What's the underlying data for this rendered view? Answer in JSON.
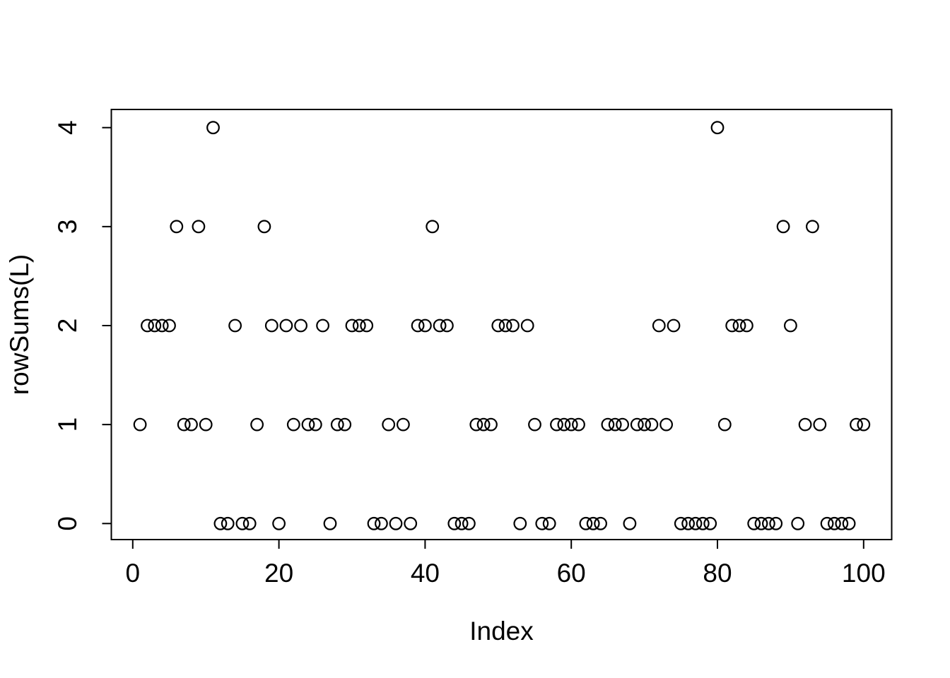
{
  "chart_data": {
    "type": "scatter",
    "title": "",
    "xlabel": "Index",
    "ylabel": "rowSums(L)",
    "point_style": "open-circle",
    "point_color": "#000000",
    "background_color": "#ffffff",
    "grid": false,
    "legend": null,
    "x_ticks": [
      0,
      20,
      40,
      60,
      80,
      100
    ],
    "y_ticks": [
      0,
      1,
      2,
      3,
      4
    ],
    "xlim": [
      -3,
      104
    ],
    "ylim": [
      -0.16,
      4.16
    ],
    "x": [
      1,
      2,
      3,
      4,
      5,
      6,
      7,
      8,
      9,
      10,
      11,
      12,
      13,
      14,
      15,
      16,
      17,
      18,
      19,
      20,
      21,
      22,
      23,
      24,
      25,
      26,
      27,
      28,
      29,
      30,
      31,
      32,
      33,
      34,
      35,
      36,
      37,
      38,
      39,
      40,
      41,
      42,
      43,
      44,
      45,
      46,
      47,
      48,
      49,
      50,
      51,
      52,
      53,
      54,
      55,
      56,
      57,
      58,
      59,
      60,
      61,
      62,
      63,
      64,
      65,
      66,
      67,
      68,
      69,
      70,
      71,
      72,
      73,
      74,
      75,
      76,
      77,
      78,
      79,
      80,
      81,
      82,
      83,
      84,
      85,
      86,
      87,
      88,
      89,
      90,
      91,
      92,
      93,
      94,
      95,
      96,
      97,
      98,
      99,
      100
    ],
    "values": [
      1,
      2,
      2,
      2,
      2,
      3,
      1,
      1,
      3,
      1,
      4,
      0,
      0,
      2,
      0,
      0,
      1,
      3,
      2,
      0,
      2,
      1,
      2,
      1,
      1,
      2,
      0,
      1,
      1,
      2,
      2,
      2,
      0,
      0,
      1,
      0,
      1,
      0,
      2,
      2,
      3,
      2,
      2,
      0,
      0,
      0,
      1,
      1,
      1,
      2,
      2,
      2,
      0,
      2,
      1,
      0,
      0,
      1,
      1,
      1,
      1,
      0,
      0,
      0,
      1,
      1,
      1,
      0,
      1,
      1,
      1,
      2,
      1,
      2,
      0,
      0,
      0,
      0,
      0,
      4,
      1,
      2,
      2,
      2,
      0,
      0,
      0,
      0,
      3,
      2,
      0,
      1,
      3,
      1,
      0,
      0,
      0,
      0,
      1,
      1
    ]
  }
}
